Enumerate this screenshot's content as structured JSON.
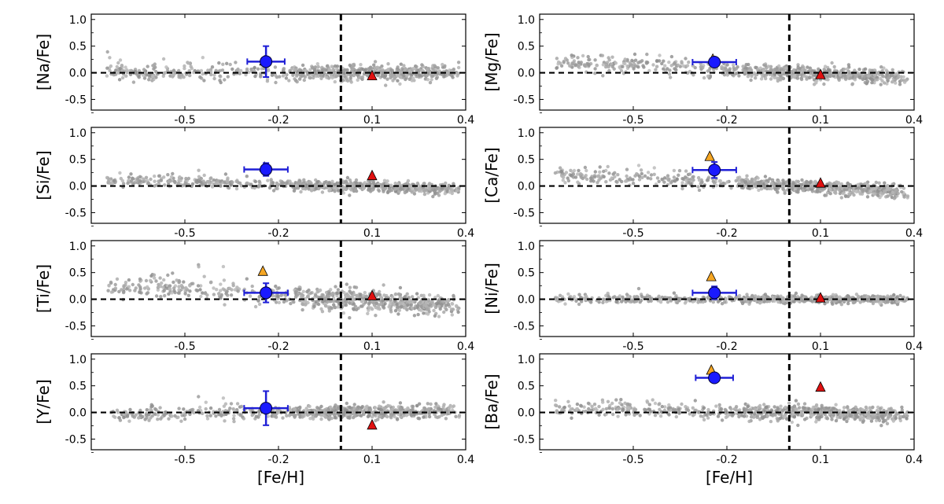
{
  "figure": {
    "xlabel": "[Fe/H]"
  },
  "chart_data": [
    {
      "type": "scatter",
      "ylabel": "[Na/Fe]",
      "xlim": [
        -0.8,
        0.4
      ],
      "ylim": [
        -0.7,
        1.1
      ],
      "xticks": [
        "-0.5",
        "-0.2",
        "0.1",
        "0.4"
      ],
      "yticks": [
        "1.0",
        "0.5",
        "0.0",
        "-0.5"
      ],
      "xtick_values": [
        -0.5,
        -0.2,
        0.1,
        0.4
      ],
      "ytick_values": [
        1.0,
        0.5,
        0.0,
        -0.5
      ],
      "vline": 0.0,
      "hline": 0.0,
      "grid": false,
      "blue_point": {
        "x": -0.24,
        "y": 0.21,
        "xerr": 0.06,
        "yerr": 0.29
      },
      "orange_triangle": {
        "x": -0.245,
        "y": 0.22
      },
      "red_triangle": {
        "x": 0.1,
        "y": -0.06
      },
      "cloud": {
        "trend_slope": 0.0,
        "spread": 0.07,
        "max_y": 0.6
      }
    },
    {
      "type": "scatter",
      "ylabel": "[Mg/Fe]",
      "xlim": [
        -0.8,
        0.4
      ],
      "ylim": [
        -0.7,
        1.1
      ],
      "xticks": [
        "-0.5",
        "-0.2",
        "0.1",
        "0.4"
      ],
      "yticks": [
        "1.0",
        "0.5",
        "0.0",
        "-0.5"
      ],
      "xtick_values": [
        -0.5,
        -0.2,
        0.1,
        0.4
      ],
      "ytick_values": [
        1.0,
        0.5,
        0.0,
        -0.5
      ],
      "vline": 0.0,
      "hline": 0.0,
      "grid": false,
      "blue_point": {
        "x": -0.24,
        "y": 0.2,
        "xerr": 0.07,
        "yerr": 0.06
      },
      "orange_triangle": {
        "x": -0.245,
        "y": 0.25
      },
      "red_triangle": {
        "x": 0.1,
        "y": -0.04
      },
      "cloud": {
        "trend_slope": -0.25,
        "spread": 0.07,
        "max_y": 0.35
      }
    },
    {
      "type": "scatter",
      "ylabel": "[Si/Fe]",
      "xlim": [
        -0.8,
        0.4
      ],
      "ylim": [
        -0.7,
        1.1
      ],
      "xticks": [
        "-0.5",
        "-0.2",
        "0.1",
        "0.4"
      ],
      "yticks": [
        "1.0",
        "0.5",
        "0.0",
        "-0.5"
      ],
      "xtick_values": [
        -0.5,
        -0.2,
        0.1,
        0.4
      ],
      "ytick_values": [
        1.0,
        0.5,
        0.0,
        -0.5
      ],
      "vline": 0.0,
      "hline": 0.0,
      "grid": false,
      "blue_point": {
        "x": -0.24,
        "y": 0.31,
        "xerr": 0.07,
        "yerr": 0.12
      },
      "orange_triangle": {
        "x": -0.245,
        "y": 0.35
      },
      "red_triangle": {
        "x": 0.1,
        "y": 0.19
      },
      "cloud": {
        "trend_slope": -0.15,
        "spread": 0.05,
        "max_y": 0.3
      }
    },
    {
      "type": "scatter",
      "ylabel": "[Ca/Fe]",
      "xlim": [
        -0.8,
        0.4
      ],
      "ylim": [
        -0.7,
        1.1
      ],
      "xticks": [
        "-0.5",
        "-0.2",
        "0.1",
        "0.4"
      ],
      "yticks": [
        "1.0",
        "0.5",
        "0.0",
        "-0.5"
      ],
      "xtick_values": [
        -0.5,
        -0.2,
        0.1,
        0.4
      ],
      "ytick_values": [
        1.0,
        0.5,
        0.0,
        -0.5
      ],
      "vline": 0.0,
      "hline": 0.0,
      "grid": false,
      "blue_point": {
        "x": -0.24,
        "y": 0.3,
        "xerr": 0.07,
        "yerr": 0.15
      },
      "orange_triangle": {
        "x": -0.255,
        "y": 0.55
      },
      "red_triangle": {
        "x": 0.1,
        "y": 0.05
      },
      "cloud": {
        "trend_slope": -0.3,
        "spread": 0.06,
        "max_y": 0.4
      }
    },
    {
      "type": "scatter",
      "ylabel": "[Ti/Fe]",
      "xlim": [
        -0.8,
        0.4
      ],
      "ylim": [
        -0.7,
        1.1
      ],
      "xticks": [
        "-0.5",
        "-0.2",
        "0.1",
        "0.4"
      ],
      "yticks": [
        "1.0",
        "0.5",
        "0.0",
        "-0.5"
      ],
      "xtick_values": [
        -0.5,
        -0.2,
        0.1,
        0.4
      ],
      "ytick_values": [
        1.0,
        0.5,
        0.0,
        -0.5
      ],
      "vline": 0.0,
      "hline": 0.0,
      "grid": false,
      "blue_point": {
        "x": -0.24,
        "y": 0.12,
        "xerr": 0.07,
        "yerr": 0.18
      },
      "orange_triangle": {
        "x": -0.25,
        "y": 0.52
      },
      "red_triangle": {
        "x": 0.1,
        "y": 0.06
      },
      "cloud": {
        "trend_slope": -0.35,
        "spread": 0.1,
        "max_y": 0.65
      }
    },
    {
      "type": "scatter",
      "ylabel": "[Ni/Fe]",
      "xlim": [
        -0.8,
        0.4
      ],
      "ylim": [
        -0.7,
        1.1
      ],
      "xticks": [
        "-0.5",
        "-0.2",
        "0.1",
        "0.4"
      ],
      "yticks": [
        "1.0",
        "0.5",
        "0.0",
        "-0.5"
      ],
      "xtick_values": [
        -0.5,
        -0.2,
        0.1,
        0.4
      ],
      "ytick_values": [
        1.0,
        0.5,
        0.0,
        -0.5
      ],
      "vline": 0.0,
      "hline": 0.0,
      "grid": false,
      "blue_point": {
        "x": -0.24,
        "y": 0.12,
        "xerr": 0.07,
        "yerr": 0.12
      },
      "orange_triangle": {
        "x": -0.25,
        "y": 0.42
      },
      "red_triangle": {
        "x": 0.1,
        "y": 0.02
      },
      "cloud": {
        "trend_slope": 0.0,
        "spread": 0.035,
        "max_y": 0.2
      }
    },
    {
      "type": "scatter",
      "ylabel": "[Y/Fe]",
      "xlim": [
        -0.8,
        0.4
      ],
      "ylim": [
        -0.7,
        1.1
      ],
      "xticks": [
        "-0.5",
        "-0.2",
        "0.1",
        "0.4"
      ],
      "yticks": [
        "1.0",
        "0.5",
        "0.0",
        "-0.5"
      ],
      "xtick_values": [
        -0.5,
        -0.2,
        0.1,
        0.4
      ],
      "ytick_values": [
        1.0,
        0.5,
        0.0,
        -0.5
      ],
      "vline": 0.0,
      "hline": 0.0,
      "grid": false,
      "blue_point": {
        "x": -0.24,
        "y": 0.08,
        "xerr": 0.07,
        "yerr": 0.32
      },
      "orange_triangle": null,
      "red_triangle": {
        "x": 0.1,
        "y": -0.24
      },
      "cloud": {
        "trend_slope": 0.05,
        "spread": 0.06,
        "max_y": 0.3
      }
    },
    {
      "type": "scatter",
      "ylabel": "[Ba/Fe]",
      "xlim": [
        -0.8,
        0.4
      ],
      "ylim": [
        -0.7,
        1.1
      ],
      "xticks": [
        "-0.5",
        "-0.2",
        "0.1",
        "0.4"
      ],
      "yticks": [
        "1.0",
        "0.5",
        "0.0",
        "-0.5"
      ],
      "xtick_values": [
        -0.5,
        -0.2,
        0.1,
        0.4
      ],
      "ytick_values": [
        1.0,
        0.5,
        0.0,
        -0.5
      ],
      "vline": 0.0,
      "hline": 0.0,
      "grid": false,
      "blue_point": {
        "x": -0.24,
        "y": 0.65,
        "xerr": 0.06,
        "yerr": 0.06
      },
      "orange_triangle": {
        "x": -0.25,
        "y": 0.79
      },
      "red_triangle": {
        "x": 0.1,
        "y": 0.47
      },
      "cloud": {
        "trend_slope": -0.1,
        "spread": 0.07,
        "max_y": 0.25
      }
    }
  ]
}
